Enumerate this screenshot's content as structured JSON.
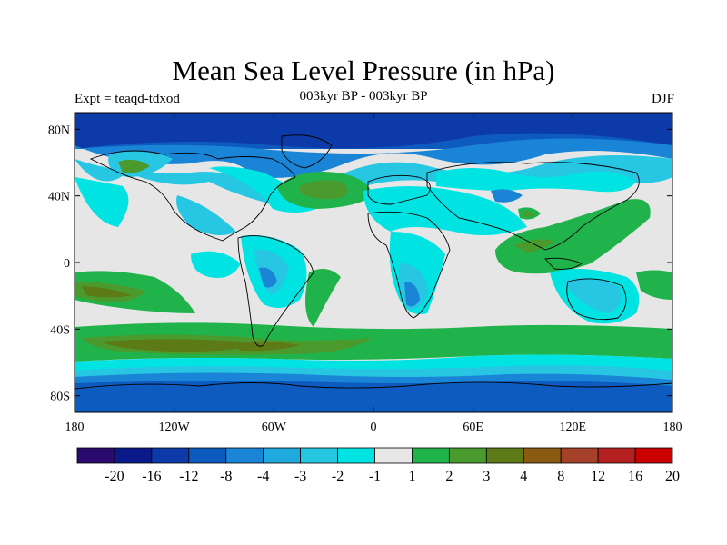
{
  "title": "Mean Sea Level Pressure (in hPa)",
  "subtitle_left": "Expt = teaqd-tdxod",
  "subtitle_center": "003kyr BP - 003kyr BP",
  "subtitle_right": "DJF",
  "x_ticks": [
    "180",
    "120W",
    "60W",
    "0",
    "60E",
    "120E",
    "180"
  ],
  "y_ticks": [
    "80N",
    "40N",
    "0",
    "40S",
    "80S"
  ],
  "colorbar": {
    "colors": [
      "#2a0a6e",
      "#0a1a8a",
      "#0c3aa8",
      "#0d5bbf",
      "#1a85d6",
      "#1fa9dc",
      "#27c6e3",
      "#00e3e3",
      "#e6e6e6",
      "#21b34b",
      "#4a9a2e",
      "#5c7a16",
      "#8a5a12",
      "#a5412a",
      "#b42020",
      "#cc0000"
    ],
    "labels": [
      "-20",
      "-16",
      "-12",
      "-8",
      "-4",
      "-3",
      "-2",
      "-1",
      "1",
      "2",
      "3",
      "4",
      "8",
      "12",
      "16",
      "20"
    ]
  }
}
